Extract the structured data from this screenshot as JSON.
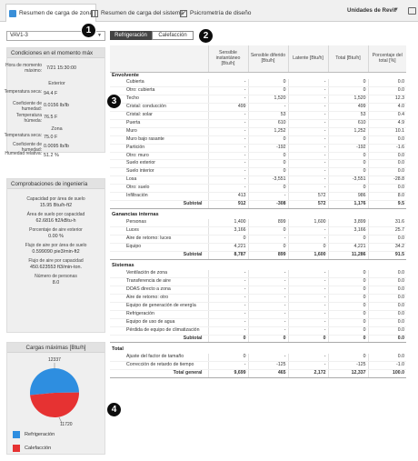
{
  "tabs": [
    {
      "label": "Resumen de carga de zona",
      "active": true
    },
    {
      "label": "Resumen de carga del sistema",
      "active": false
    },
    {
      "label": "Psicrometría de diseño",
      "active": false
    }
  ],
  "units_label": "Unidades de Revit",
  "zone_select": "VAV1-3",
  "conditions": {
    "title": "Condiciones en el momento máx",
    "max_time_label": "Hora de momento máximo:",
    "max_time_value": "7/21 15:30:00",
    "exterior_label": "Exterior",
    "zone_label": "Zona",
    "rows_ext": [
      {
        "label": "Temperatura seca:",
        "value": "94.4 F"
      },
      {
        "label": "Coeficiente de humedad:",
        "value": "0.0156 lb/lb"
      },
      {
        "label": "Temperatura húmeda:",
        "value": "76.5 F"
      }
    ],
    "rows_zone": [
      {
        "label": "Temperatura seca:",
        "value": "75.0 F"
      },
      {
        "label": "Coeficiente de humedad:",
        "value": "0.0095 lb/lb"
      },
      {
        "label": "Humedad relativa:",
        "value": "51.2 %"
      }
    ]
  },
  "engineering": {
    "title": "Comprobaciones de ingeniería",
    "items": [
      {
        "label": "Capacidad por área de suelo",
        "value": "15.95 Btu/h-ft2"
      },
      {
        "label": "Área de suelo por capacidad",
        "value": "62.6816 ft2/kBtu-h"
      },
      {
        "label": "Porcentaje de aire exterior",
        "value": "0.00 %"
      },
      {
        "label": "Flujo de aire por área de suelo",
        "value": "0.599090 pie3/min-ft2"
      },
      {
        "label": "Flujo de aire por capacidad",
        "value": "450.623553 ft3/min-ton."
      },
      {
        "label": "Número de personas",
        "value": "8.0"
      }
    ]
  },
  "pie": {
    "title": "Cargas máximas [Btu/h]",
    "label_top": "12337",
    "label_bottom": "11720",
    "legend": [
      {
        "label": "Refrigeración",
        "color": "#2e8ee0"
      },
      {
        "label": "Calefacción",
        "color": "#e63232"
      }
    ],
    "values": {
      "refrigeracion": 12337,
      "calefaccion": 11720
    }
  },
  "toggle": {
    "on": "Refrigeración",
    "off": "Calefacción"
  },
  "markers": [
    "1",
    "2",
    "3",
    "4"
  ],
  "table": {
    "headers": [
      "",
      "Sensible instantáneo [Btu/h]",
      "Sensible diferido [Btu/h]",
      "Latente [Btu/h]",
      "Total [Btu/h]",
      "Porcentaje del total [%]"
    ],
    "sections": [
      {
        "title": "Envolvente",
        "rows": [
          [
            "Cubierta",
            "-",
            "0",
            "-",
            "0",
            "0.0"
          ],
          [
            "Otro: cubierta",
            "-",
            "0",
            "-",
            "0",
            "0.0"
          ],
          [
            "Techo",
            "-",
            "1,520",
            "-",
            "1,520",
            "12.3"
          ],
          [
            "Cristal: conducción",
            "499",
            "-",
            "-",
            "499",
            "4.0"
          ],
          [
            "Cristal: solar",
            "-",
            "53",
            "-",
            "53",
            "0.4"
          ],
          [
            "Puerta",
            "-",
            "610",
            "-",
            "610",
            "4.9"
          ],
          [
            "Muro",
            "-",
            "1,252",
            "-",
            "1,252",
            "10.1"
          ],
          [
            "Muro bajo rasante",
            "-",
            "0",
            "-",
            "0",
            "0.0"
          ],
          [
            "Partición",
            "-",
            "-192",
            "-",
            "-192",
            "-1.6"
          ],
          [
            "Otro: muro",
            "-",
            "0",
            "-",
            "0",
            "0.0"
          ],
          [
            "Suelo exterior",
            "-",
            "0",
            "-",
            "0",
            "0.0"
          ],
          [
            "Suelo interior",
            "-",
            "0",
            "-",
            "0",
            "0.0"
          ],
          [
            "Losa",
            "-",
            "-3,551",
            "-",
            "-3,551",
            "-28.8"
          ],
          [
            "Otro: suelo",
            "-",
            "0",
            "-",
            "0",
            "0.0"
          ],
          [
            "Infiltración",
            "413",
            "-",
            "572",
            "986",
            "8.0"
          ]
        ],
        "subtotal": [
          "Subtotal",
          "912",
          "-308",
          "572",
          "1,176",
          "9.5"
        ]
      },
      {
        "title": "Ganancias internas",
        "rows": [
          [
            "Personas",
            "1,400",
            "899",
            "1,600",
            "3,899",
            "31.6"
          ],
          [
            "Luces",
            "3,166",
            "0",
            "-",
            "3,166",
            "25.7"
          ],
          [
            "Aire de retorno: luces",
            "0",
            "-",
            "-",
            "0",
            "0.0"
          ],
          [
            "Equipo",
            "4,221",
            "0",
            "0",
            "4,221",
            "34.2"
          ]
        ],
        "subtotal": [
          "Subtotal",
          "8,787",
          "899",
          "1,600",
          "11,286",
          "91.5"
        ]
      },
      {
        "title": "Sistemas",
        "rows": [
          [
            "Ventilación de zona",
            "-",
            "-",
            "-",
            "0",
            "0.0"
          ],
          [
            "Transferencia de aire",
            "-",
            "-",
            "-",
            "0",
            "0.0"
          ],
          [
            "DOAS directo a zona",
            "-",
            "-",
            "-",
            "0",
            "0.0"
          ],
          [
            "Aire de retorno: otro",
            "-",
            "-",
            "-",
            "0",
            "0.0"
          ],
          [
            "Equipo de generación de energía",
            "-",
            "-",
            "-",
            "0",
            "0.0"
          ],
          [
            "Refrigeración",
            "-",
            "-",
            "-",
            "0",
            "0.0"
          ],
          [
            "Equipo de uso de agua",
            "-",
            "-",
            "-",
            "0",
            "0.0"
          ],
          [
            "Pérdida de equipo de climatización",
            "-",
            "-",
            "-",
            "0",
            "0.0"
          ]
        ],
        "subtotal": [
          "Subtotal",
          "0",
          "0",
          "0",
          "0",
          "0.0"
        ]
      },
      {
        "title": "Total",
        "rows": [
          [
            "Ajuste del factor de tamaño",
            "0",
            "-",
            "-",
            "0",
            "0.0"
          ],
          [
            "Corrección de retardo de tiempo",
            "-",
            "-125",
            "-",
            "-125",
            "-1.0"
          ]
        ],
        "subtotal": [
          "Total general",
          "9,699",
          "465",
          "2,172",
          "12,337",
          "100.0"
        ]
      }
    ]
  }
}
